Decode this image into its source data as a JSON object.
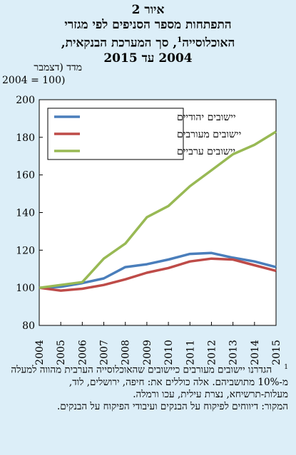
{
  "title": {
    "line1": "איור 2",
    "line2": "התפתחות מספר הסניפים לפי מגזרי",
    "line3a": "האוכלוסייה",
    "line3_sup": "1",
    "line3b": ", סך המערכת הבנקאית,",
    "line4": "2004 עד 2015"
  },
  "ylabel": {
    "line1": "מדד (דצמבר",
    "line2": "2004 = 100)"
  },
  "footnote": {
    "marker": "1",
    "text": "הגדרנו יישובים מעורבים כיישובים שהאוכלוסייה הערבית מהווה למעלה מ-10% מתושביהם. אלה כוללים את: חיפה, ירושלים, לוד, מעלות-תרשיחא, נצרת עילית, עכו ורמלה.",
    "source": "המקור: דיווחים לפיקוח על הבנקים ועיבודי הפיקוח על הבנקים."
  },
  "chart_data": {
    "type": "line",
    "x": [
      "2004",
      "2005",
      "2006",
      "2007",
      "2008",
      "2009",
      "2010",
      "2011",
      "2012",
      "2013",
      "2014",
      "2015"
    ],
    "ylim": [
      80,
      200
    ],
    "yticks": [
      80,
      100,
      120,
      140,
      160,
      180,
      200
    ],
    "legend_position": "top-left",
    "grid": false,
    "series": [
      {
        "name": "יישובים יהודיים",
        "color": "#4a7ebb",
        "values": [
          100,
          100.5,
          102.5,
          105,
          111,
          112.5,
          115,
          118,
          118.5,
          116,
          114,
          111
        ]
      },
      {
        "name": "יישובים מעורבים",
        "color": "#be4b48",
        "values": [
          100,
          98.5,
          99.5,
          101.5,
          104.5,
          108,
          110.5,
          114,
          115.5,
          115,
          112,
          109
        ]
      },
      {
        "name": "יישובים ערביים",
        "color": "#98b954",
        "values": [
          100,
          101.5,
          103,
          115.5,
          123.5,
          137.5,
          143.5,
          154,
          162.5,
          171,
          176,
          183
        ]
      }
    ]
  }
}
